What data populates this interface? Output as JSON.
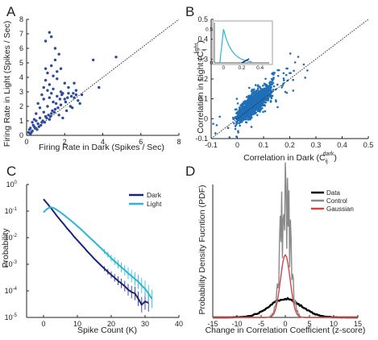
{
  "chart_data": [
    {
      "panel_label": "A",
      "type": "scatter",
      "xlabel": "Firing Rate in Dark (Spikes / Sec)",
      "ylabel": "Firing Rate in Light (Spikes / Sec)",
      "xlim": [
        0,
        8
      ],
      "ylim": [
        0,
        8
      ],
      "xticks": [
        "0",
        "2",
        "4",
        "6",
        "8"
      ],
      "yticks": [
        "0",
        "1",
        "2",
        "3",
        "4",
        "5",
        "6",
        "7",
        "8"
      ],
      "color": "#2b4a9c",
      "reference_line": "unity",
      "points": [
        [
          0.1,
          0.2
        ],
        [
          0.2,
          0.5
        ],
        [
          0.3,
          0.3
        ],
        [
          0.35,
          0.7
        ],
        [
          0.4,
          0.6
        ],
        [
          0.5,
          1.0
        ],
        [
          0.55,
          0.4
        ],
        [
          0.6,
          0.8
        ],
        [
          0.7,
          1.2
        ],
        [
          0.8,
          0.9
        ],
        [
          0.9,
          1.6
        ],
        [
          1.0,
          1.3
        ],
        [
          1.1,
          2.0
        ],
        [
          1.2,
          1.1
        ],
        [
          1.3,
          1.5
        ],
        [
          1.4,
          2.3
        ],
        [
          1.5,
          1.8
        ],
        [
          1.6,
          2.7
        ],
        [
          1.7,
          1.4
        ],
        [
          1.8,
          2.1
        ],
        [
          1.9,
          1.2
        ],
        [
          2.0,
          2.5
        ],
        [
          2.1,
          1.7
        ],
        [
          2.2,
          2.9
        ],
        [
          2.3,
          2.0
        ],
        [
          2.4,
          1.9
        ],
        [
          2.5,
          2.6
        ],
        [
          2.6,
          3.1
        ],
        [
          2.7,
          2.4
        ],
        [
          2.8,
          2.2
        ],
        [
          0.9,
          3.3
        ],
        [
          1.0,
          3.8
        ],
        [
          1.1,
          4.3
        ],
        [
          1.2,
          3.5
        ],
        [
          1.3,
          4.8
        ],
        [
          1.4,
          4.1
        ],
        [
          1.5,
          5.2
        ],
        [
          1.6,
          3.9
        ],
        [
          1.0,
          6.5
        ],
        [
          1.2,
          7.1
        ],
        [
          1.3,
          6.8
        ],
        [
          1.5,
          6.0
        ],
        [
          1.7,
          5.6
        ],
        [
          0.8,
          2.8
        ],
        [
          0.6,
          2.2
        ],
        [
          0.5,
          1.5
        ],
        [
          0.7,
          1.9
        ],
        [
          1.8,
          4.6
        ],
        [
          2.0,
          3.6
        ],
        [
          2.2,
          3.3
        ],
        [
          2.5,
          3.6
        ],
        [
          2.9,
          2.8
        ],
        [
          3.5,
          5.2
        ],
        [
          3.8,
          3.3
        ],
        [
          4.7,
          5.4
        ],
        [
          1.9,
          2.9
        ],
        [
          1.2,
          2.6
        ],
        [
          0.4,
          1.1
        ],
        [
          0.3,
          0.9
        ],
        [
          0.2,
          0.1
        ],
        [
          0.15,
          0.4
        ],
        [
          0.25,
          0.2
        ],
        [
          0.45,
          0.5
        ],
        [
          0.65,
          0.6
        ],
        [
          0.75,
          0.7
        ],
        [
          0.85,
          1.0
        ],
        [
          0.95,
          0.9
        ],
        [
          1.05,
          1.2
        ],
        [
          1.15,
          1.4
        ],
        [
          1.25,
          1.3
        ],
        [
          1.35,
          1.7
        ],
        [
          1.45,
          1.6
        ],
        [
          1.55,
          2.2
        ],
        [
          1.65,
          1.9
        ],
        [
          1.75,
          2.5
        ],
        [
          1.85,
          2.8
        ],
        [
          2.05,
          2.3
        ],
        [
          2.15,
          2.6
        ],
        [
          2.35,
          2.7
        ],
        [
          2.45,
          2.9
        ],
        [
          1.1,
          3.1
        ],
        [
          1.4,
          3.2
        ],
        [
          1.6,
          4.4
        ],
        [
          1.0,
          4.6
        ],
        [
          1.8,
          3.0
        ],
        [
          2.6,
          2.8
        ],
        [
          1.3,
          2.9
        ],
        [
          0.9,
          2.5
        ]
      ]
    },
    {
      "panel_label": "B",
      "type": "scatter",
      "xlabel": "Correlation in Dark (C",
      "xlabel_sub": "ij",
      "xlabel_sup": "dark",
      "xlabel_end": ")",
      "ylabel": "Correlation in Light (C",
      "ylabel_sub": "ij",
      "ylabel_sup": "light",
      "ylabel_end": ")",
      "xlim": [
        -0.1,
        0.5
      ],
      "ylim": [
        -0.1,
        0.5
      ],
      "xticks": [
        "-0.1",
        "0",
        "0.1",
        "0.2",
        "0.3",
        "0.4",
        "0.5"
      ],
      "yticks": [
        "-0.1",
        "0",
        "0.1",
        "0.2",
        "0.3",
        "0.4",
        "0.5"
      ],
      "color": "#1f6fb8",
      "reference_line": "unity",
      "cloud_center": [
        0.04,
        0.05
      ],
      "n_points": 1500,
      "inset": {
        "type": "line",
        "xticks": [
          "0",
          "0.2",
          "0.4"
        ],
        "yticks": [
          "0",
          "0.5"
        ],
        "peak_x": 0,
        "peak_y": 0.5,
        "dark_color": "#1a237e",
        "light_color": "#29b6d6"
      }
    },
    {
      "panel_label": "C",
      "type": "line",
      "xlabel": "Spike Count (K)",
      "ylabel": "Probability",
      "xlim": [
        -5,
        40
      ],
      "yscale": "log",
      "ylim": [
        1e-05,
        1
      ],
      "xticks": [
        "0",
        "10",
        "20",
        "30",
        "40"
      ],
      "yticks": [
        "10",
        "10",
        "10",
        "10",
        "10",
        "10"
      ],
      "ytick_exponents": [
        "-5",
        "-4",
        "-3",
        "-2",
        "-1",
        "0"
      ],
      "series": [
        {
          "name": "Dark",
          "color": "#1a237e",
          "x": [
            0,
            1,
            2,
            3,
            4,
            5,
            6,
            7,
            8,
            9,
            10,
            11,
            12,
            13,
            14,
            15,
            16,
            17,
            18,
            19,
            20,
            21,
            22,
            23,
            24,
            25,
            26,
            27,
            28,
            29,
            30,
            31
          ],
          "y": [
            0.28,
            0.2,
            0.14,
            0.095,
            0.065,
            0.045,
            0.032,
            0.022,
            0.016,
            0.011,
            0.008,
            0.0058,
            0.0042,
            0.003,
            0.0022,
            0.0016,
            0.0012,
            0.0009,
            0.00068,
            0.00052,
            0.0004,
            0.00031,
            0.00024,
            0.00019,
            0.00015,
            0.00011,
            9e-05,
            8e-05,
            5e-05,
            3e-05,
            4e-05,
            3.5e-05
          ]
        },
        {
          "name": "Light",
          "color": "#29b6d6",
          "x": [
            0,
            1,
            2,
            3,
            4,
            5,
            6,
            7,
            8,
            9,
            10,
            11,
            12,
            13,
            14,
            15,
            16,
            17,
            18,
            19,
            20,
            21,
            22,
            23,
            24,
            25,
            26,
            27,
            28,
            29,
            30,
            31,
            32
          ],
          "y": [
            0.09,
            0.12,
            0.14,
            0.13,
            0.11,
            0.09,
            0.072,
            0.057,
            0.045,
            0.035,
            0.027,
            0.021,
            0.016,
            0.012,
            0.0092,
            0.007,
            0.0053,
            0.004,
            0.003,
            0.0023,
            0.0017,
            0.0013,
            0.001,
            0.00077,
            0.0006,
            0.00046,
            0.00036,
            0.00028,
            0.00022,
            0.00016,
            0.00012,
            8e-05,
            5e-05
          ]
        }
      ],
      "legend_position": "top-right"
    },
    {
      "panel_label": "D",
      "type": "line",
      "xlabel": "Change in Correlation Coefficient (z-score)",
      "ylabel": "Probability Density Fucntion (PDF)",
      "xlim": [
        -15,
        15
      ],
      "ylim": [
        0,
        0.85
      ],
      "xticks": [
        "-15",
        "-10",
        "-5",
        "0",
        "5",
        "10",
        "15"
      ],
      "series": [
        {
          "name": "Data",
          "color": "#000000",
          "kind": "broad",
          "sigma": 3.3,
          "peak": 0.12
        },
        {
          "name": "Control",
          "color": "#8a8a8a",
          "kind": "noisy",
          "sigma": 1.0,
          "peak": 0.8
        },
        {
          "name": "Gaussian",
          "color": "#d64545",
          "kind": "smooth",
          "sigma": 1.0,
          "peak": 0.4
        }
      ],
      "legend_position": "top-right"
    }
  ]
}
